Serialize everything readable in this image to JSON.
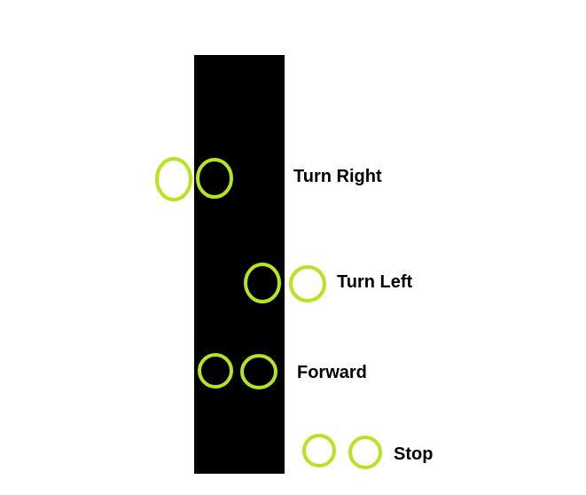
{
  "colors": {
    "line": "#000000",
    "sensor": "#b5e61d",
    "background": "#ffffff"
  },
  "cases": [
    {
      "label": "Turn Right"
    },
    {
      "label": "Turn Left"
    },
    {
      "label": "Forward"
    },
    {
      "label": "Stop"
    }
  ]
}
